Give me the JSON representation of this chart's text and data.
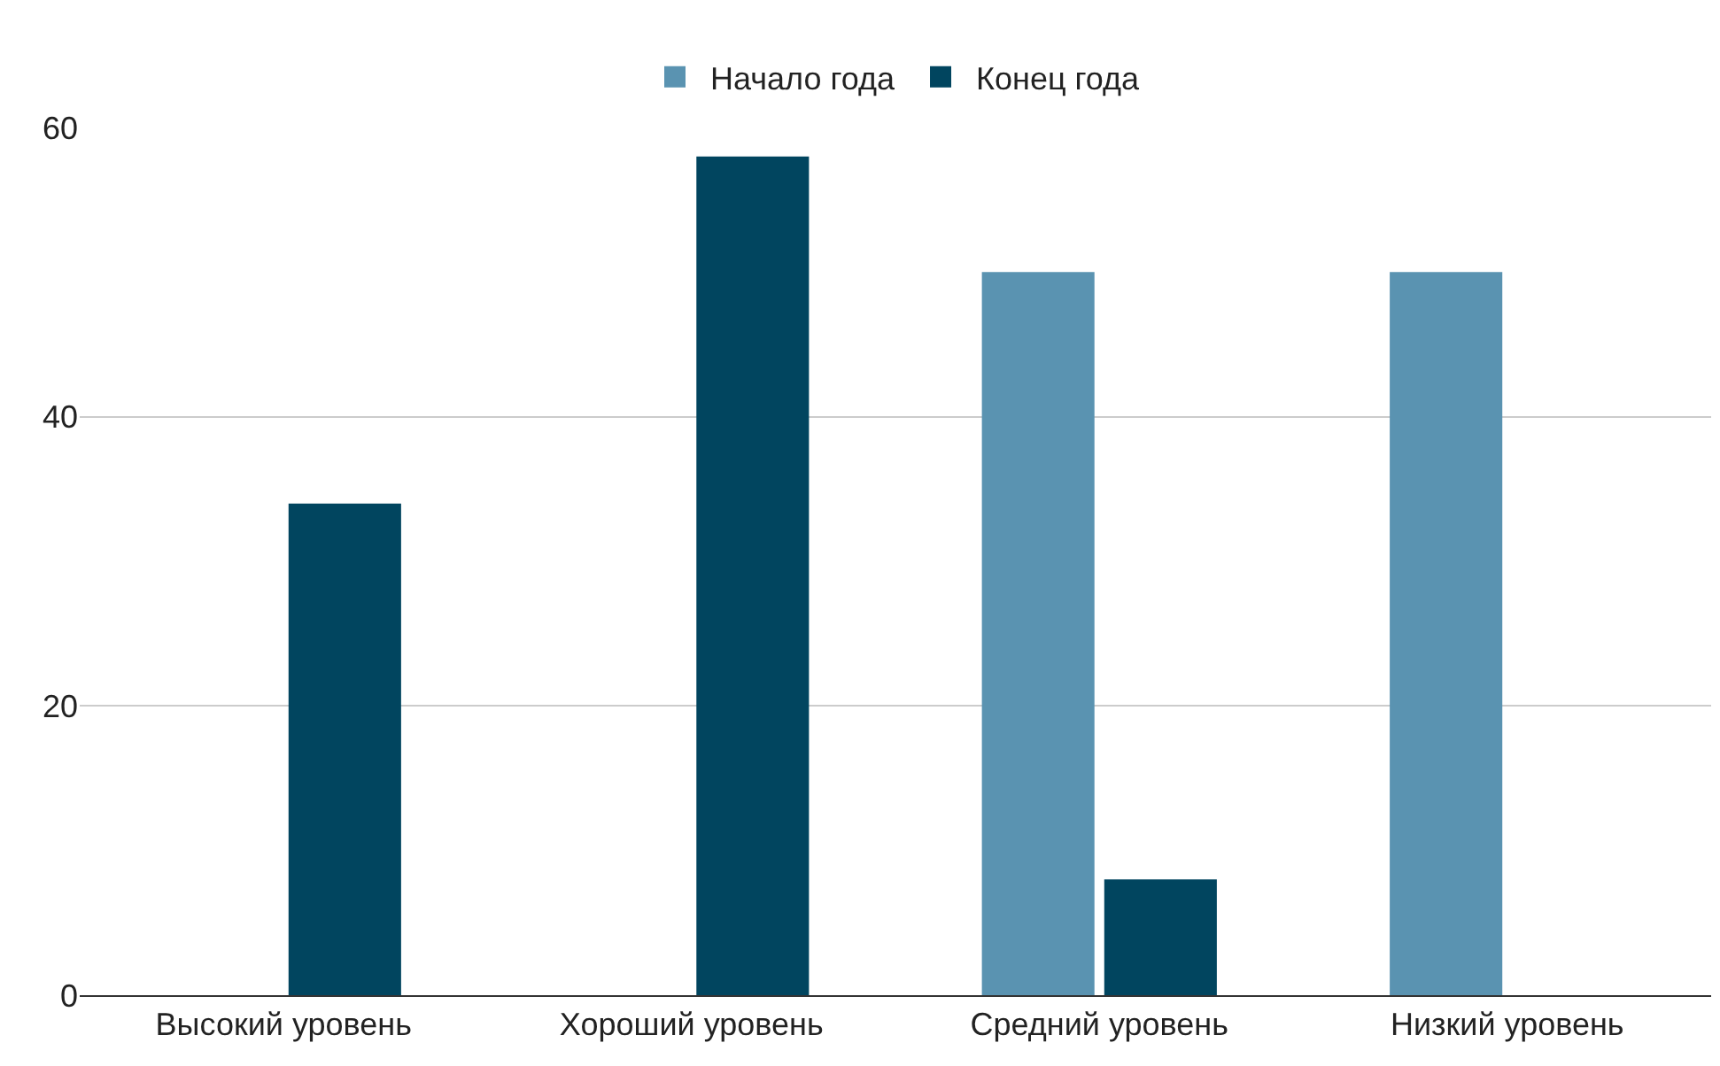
{
  "chart_data": {
    "type": "bar",
    "categories": [
      "Высокий уровень",
      "Хороший уровень",
      "Средний уровень",
      "Низкий уровень"
    ],
    "series": [
      {
        "name": "Начало года",
        "color": "#5a93b1",
        "values": [
          0,
          0,
          50,
          50
        ]
      },
      {
        "name": "Конец года",
        "color": "#01455f",
        "values": [
          34,
          58,
          8,
          0
        ]
      }
    ],
    "ylim": [
      0,
      60
    ],
    "yticks": [
      0,
      20,
      40,
      60
    ],
    "grid": "y",
    "legend": "top"
  }
}
